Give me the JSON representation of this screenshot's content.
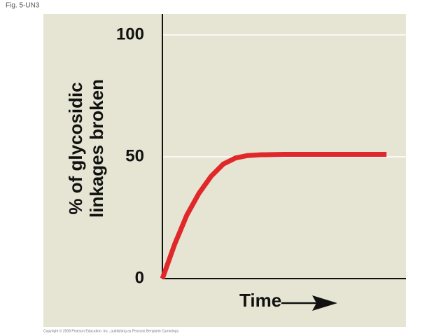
{
  "chart_data": {
    "type": "line",
    "figure_label": "Fig. 5-UN3",
    "ylabel": [
      "% of glycosidic",
      "linkages broken"
    ],
    "xlabel": "Time",
    "copyright": "Copyright © 2008 Pearson Education, Inc., publishing as Pearson Benjamin Cummings.",
    "x": [
      0,
      5,
      10,
      15,
      20,
      25,
      30,
      35,
      40,
      50,
      60,
      70,
      80,
      92
    ],
    "series": [
      {
        "color": "#e0282a",
        "values": [
          0,
          14,
          26,
          35,
          42,
          47,
          49.5,
          50.5,
          50.8,
          51,
          51,
          51,
          51,
          51
        ]
      }
    ],
    "xlim": [
      0,
      100
    ],
    "ylim": [
      0,
      108.6
    ],
    "yticks": [
      0,
      50,
      100
    ],
    "grid": true
  }
}
